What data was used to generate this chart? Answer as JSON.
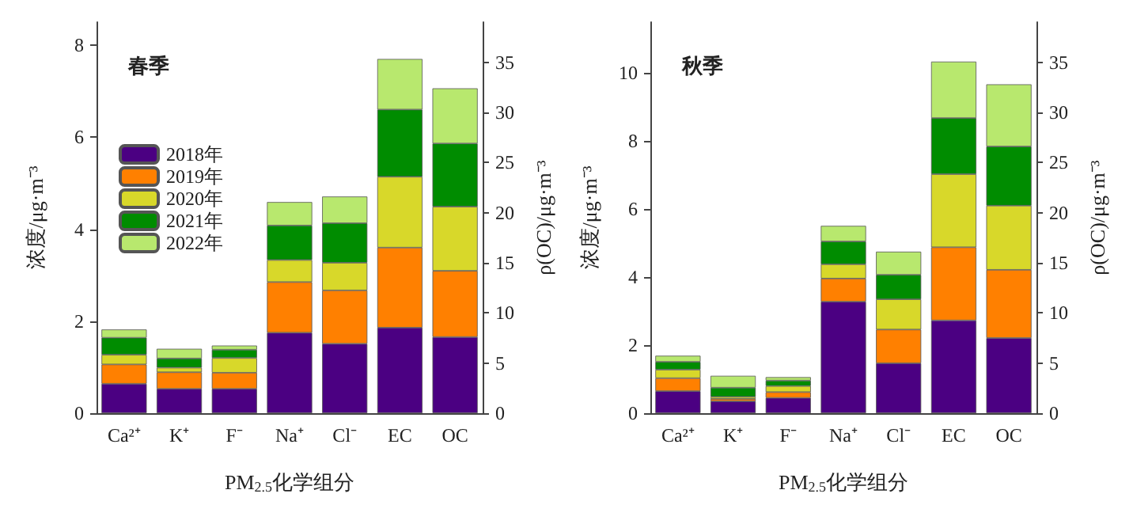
{
  "chart_data": [
    {
      "type": "bar",
      "title": "春季",
      "stacked": true,
      "xlabel": "PM$_{2.5}$化学组分",
      "ylabel": "浓度/μg·m⁻³",
      "y2label": "ρ(OC)/μg·m⁻³",
      "categories": [
        "Ca²⁺",
        "K⁺",
        "F⁻",
        "Na⁺",
        "Cl⁻",
        "EC",
        "OC"
      ],
      "ylim": [
        0,
        8.5
      ],
      "yticks": [
        0,
        2,
        4,
        6,
        8
      ],
      "y2lim": [
        0,
        39
      ],
      "y2ticks": [
        0,
        5,
        10,
        15,
        20,
        25,
        30,
        35
      ],
      "legend": "top left",
      "grid": false,
      "series": [
        {
          "name": "2018年",
          "color": "#4b0082",
          "values": [
            0.64,
            0.53,
            0.53,
            1.75,
            1.51,
            1.86,
            null
          ]
        },
        {
          "name": "2019年",
          "color": "#ff8000",
          "values": [
            0.42,
            0.36,
            0.35,
            1.1,
            1.16,
            1.74,
            null
          ]
        },
        {
          "name": "2020年",
          "color": "#d8d82a",
          "values": [
            0.21,
            0.1,
            0.32,
            0.48,
            0.6,
            1.54,
            null
          ]
        },
        {
          "name": "2021年",
          "color": "#008c00",
          "values": [
            0.37,
            0.2,
            0.18,
            0.75,
            0.86,
            1.46,
            null
          ]
        },
        {
          "name": "2022年",
          "color": "#b8e86e",
          "values": [
            0.18,
            0.21,
            0.09,
            0.51,
            0.58,
            1.1,
            null
          ]
        },
        {
          "color": "#4b0082",
          "axis": "y2",
          "values": [
            null,
            null,
            null,
            null,
            null,
            null,
            7.6
          ]
        },
        {
          "color": "#ff8000",
          "axis": "y2",
          "values": [
            null,
            null,
            null,
            null,
            null,
            null,
            6.6
          ]
        },
        {
          "color": "#d8d82a",
          "axis": "y2",
          "values": [
            null,
            null,
            null,
            null,
            null,
            null,
            6.4
          ]
        },
        {
          "color": "#008c00",
          "axis": "y2",
          "values": [
            null,
            null,
            null,
            null,
            null,
            null,
            6.3
          ]
        },
        {
          "color": "#b8e86e",
          "axis": "y2",
          "values": [
            null,
            null,
            null,
            null,
            null,
            null,
            5.5
          ]
        }
      ]
    },
    {
      "type": "bar",
      "title": "秋季",
      "stacked": true,
      "xlabel": "PM$_{2.5}$化学组分",
      "ylabel": "浓度/μg·m⁻³",
      "y2label": "ρ(OC)/μg·m⁻³",
      "categories": [
        "Ca²⁺",
        "K⁺",
        "F⁻",
        "Na⁺",
        "Cl⁻",
        "EC",
        "OC"
      ],
      "ylim": [
        0,
        11.5
      ],
      "yticks": [
        0,
        2,
        4,
        6,
        8,
        10
      ],
      "y2lim": [
        0,
        39
      ],
      "y2ticks": [
        0,
        5,
        10,
        15,
        20,
        25,
        30,
        35
      ],
      "grid": false,
      "series": [
        {
          "color": "#4b0082",
          "values": [
            0.65,
            0.35,
            0.45,
            3.28,
            1.47,
            2.73,
            null
          ]
        },
        {
          "color": "#ff8000",
          "values": [
            0.38,
            0.07,
            0.17,
            0.68,
            0.99,
            2.15,
            null
          ]
        },
        {
          "color": "#d8d82a",
          "values": [
            0.25,
            0.06,
            0.18,
            0.42,
            0.89,
            2.15,
            null
          ]
        },
        {
          "color": "#008c00",
          "values": [
            0.23,
            0.27,
            0.16,
            0.67,
            0.72,
            1.65,
            null
          ]
        },
        {
          "color": "#b8e86e",
          "values": [
            0.18,
            0.35,
            0.1,
            0.46,
            0.68,
            1.66,
            null
          ]
        },
        {
          "color": "#4b0082",
          "axis": "y2",
          "values": [
            null,
            null,
            null,
            null,
            null,
            null,
            7.5
          ]
        },
        {
          "color": "#ff8000",
          "axis": "y2",
          "values": [
            null,
            null,
            null,
            null,
            null,
            null,
            6.8
          ]
        },
        {
          "color": "#d8d82a",
          "axis": "y2",
          "values": [
            null,
            null,
            null,
            null,
            null,
            null,
            6.4
          ]
        },
        {
          "color": "#008c00",
          "axis": "y2",
          "values": [
            null,
            null,
            null,
            null,
            null,
            null,
            5.9
          ]
        },
        {
          "color": "#b8e86e",
          "axis": "y2",
          "values": [
            null,
            null,
            null,
            null,
            null,
            null,
            6.2
          ]
        }
      ]
    }
  ]
}
